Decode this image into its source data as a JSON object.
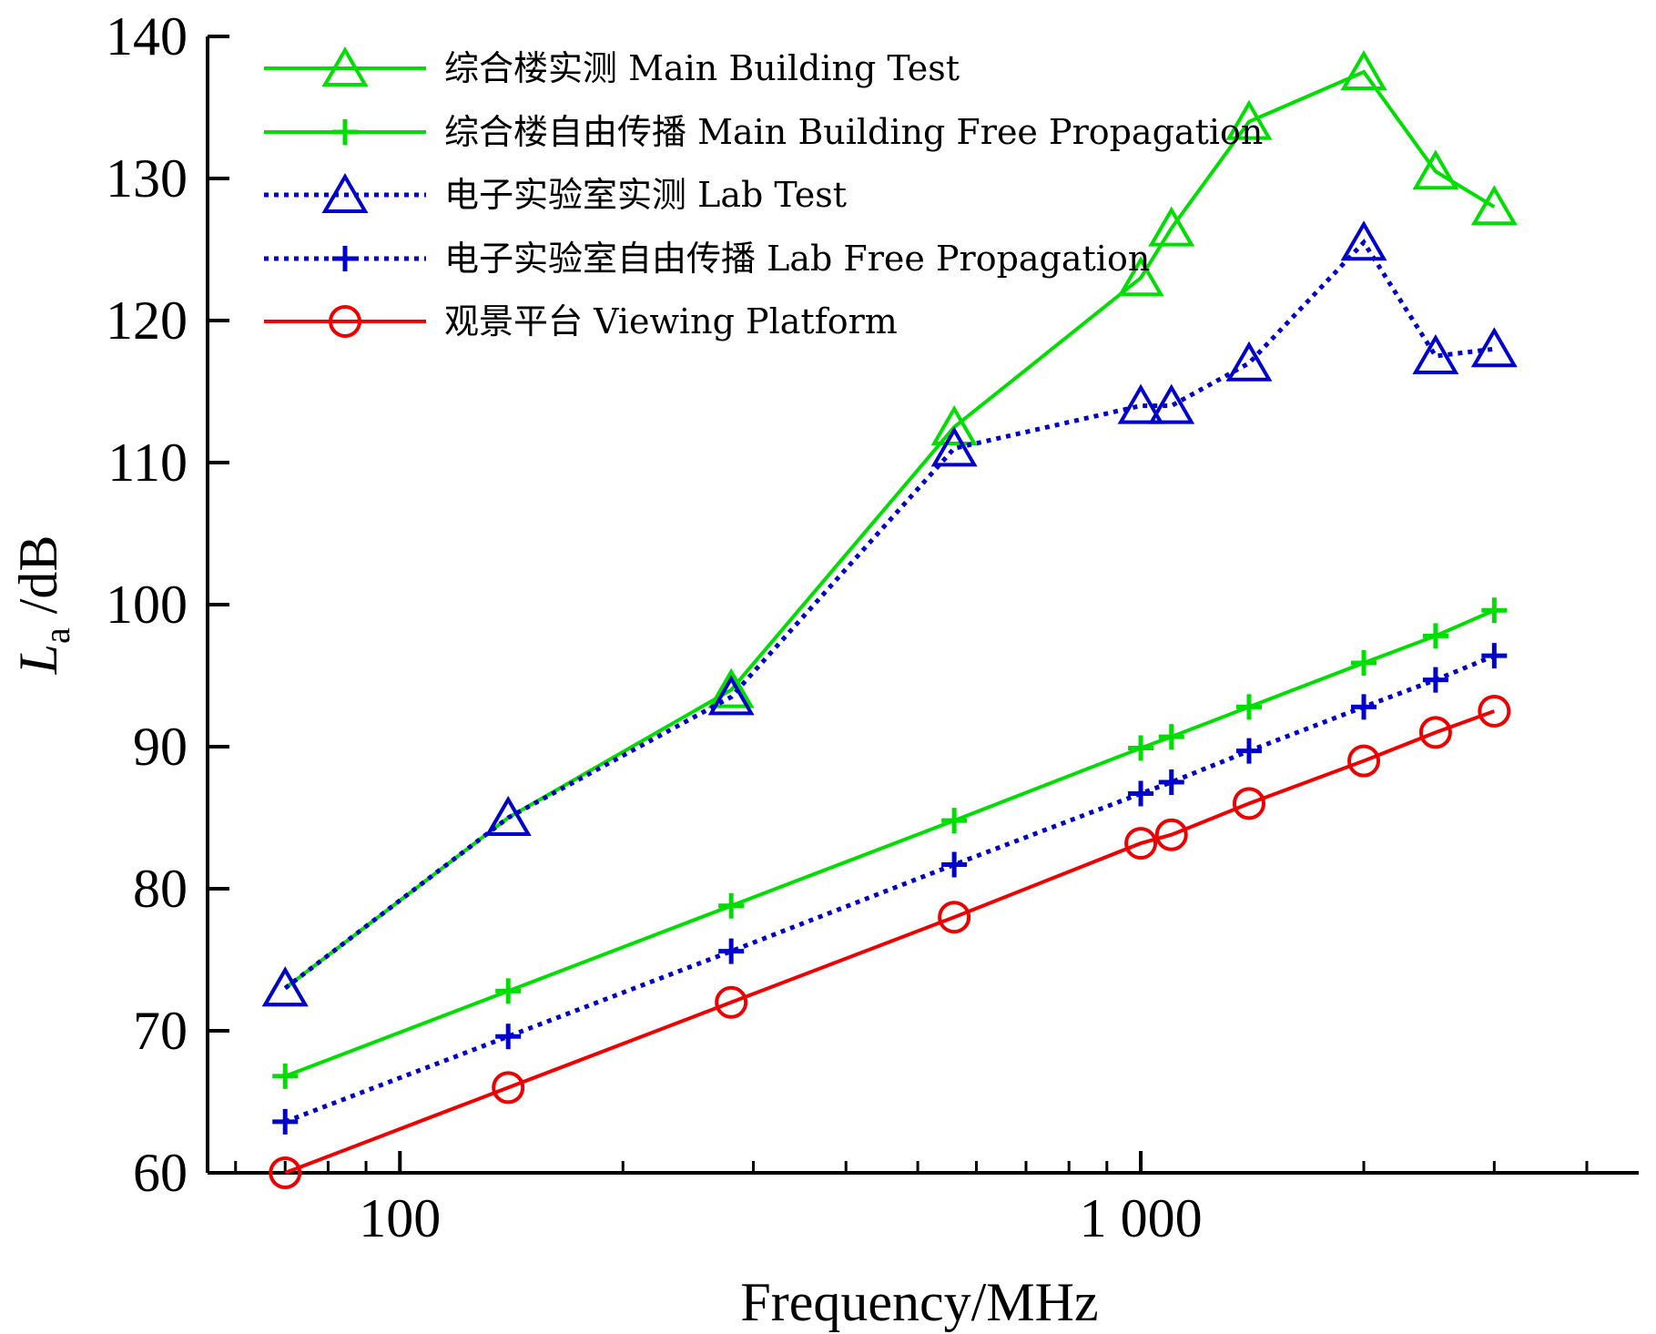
{
  "chart_data": {
    "type": "line",
    "xlabel": "Frequency/MHz",
    "ylabel_main": "L",
    "ylabel_sub": "a",
    "ylabel_unit": " /dB",
    "xscale": "log",
    "xlim": [
      55,
      4700
    ],
    "ylim": [
      60,
      140
    ],
    "yticks": [
      60,
      70,
      80,
      90,
      100,
      110,
      120,
      130,
      140
    ],
    "ytick_labels": [
      "60",
      "70",
      "80",
      "90",
      "100",
      "110",
      "120",
      "130",
      "140"
    ],
    "xticks_major": [
      100,
      1000
    ],
    "xtick_labels": [
      "100",
      "1 000"
    ],
    "xticks_minor": [
      60,
      70,
      80,
      90,
      200,
      300,
      400,
      500,
      600,
      700,
      800,
      900,
      2000,
      3000,
      4000
    ],
    "x": [
      70,
      140,
      280,
      560,
      1000,
      1100,
      1400,
      2000,
      2500,
      3000
    ],
    "series": [
      {
        "name": "综合楼实测 Main Building Test",
        "color": "#00dd00",
        "dash": "solid",
        "marker": "triangle",
        "values": [
          73,
          85,
          94,
          112.5,
          123,
          126.5,
          134,
          137.5,
          130.5,
          128
        ]
      },
      {
        "name": "综合楼自由传播 Main Building Free Propagation",
        "color": "#00dd00",
        "dash": "solid",
        "marker": "plus",
        "values": [
          66.8,
          72.8,
          78.8,
          84.8,
          89.9,
          90.7,
          92.8,
          95.9,
          97.8,
          99.6
        ]
      },
      {
        "name": "电子实验室实测 Lab Test",
        "color": "#0000cc",
        "dash": "dotted",
        "marker": "triangle",
        "values": [
          73,
          85,
          93.5,
          111,
          114,
          114,
          117,
          125.5,
          117.5,
          118
        ]
      },
      {
        "name": "电子实验室自由传播 Lab Free Propagation",
        "color": "#0000cc",
        "dash": "dotted",
        "marker": "plus",
        "values": [
          63.6,
          69.6,
          75.6,
          81.7,
          86.7,
          87.5,
          89.7,
          92.8,
          94.7,
          96.4
        ]
      },
      {
        "name": "观景平台 Viewing Platform",
        "color": "#ee0000",
        "dash": "solid",
        "marker": "circle",
        "values": [
          60,
          66,
          72,
          78,
          83.2,
          83.8,
          86,
          89,
          91,
          92.5
        ]
      }
    ],
    "legend_position": "top-left"
  }
}
